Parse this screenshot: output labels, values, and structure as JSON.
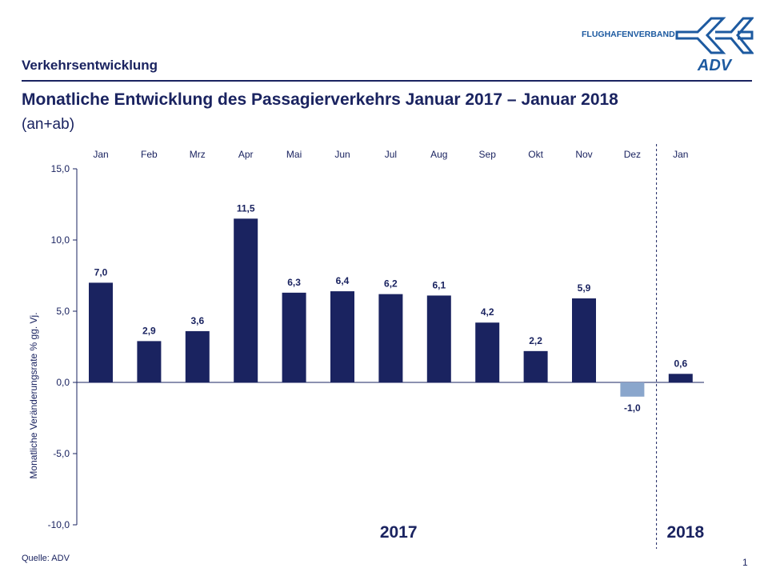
{
  "header": {
    "section": "Verkehrsentwicklung",
    "logo_text": "FLUGHAFENVERBAND",
    "logo_mark": "ADV"
  },
  "title": "Monatliche Entwicklung des Passagierverkehrs  Januar 2017 – Januar 2018",
  "subtitle": "(an+ab)",
  "footer": {
    "source": "Quelle: ADV",
    "page": "1"
  },
  "colors": {
    "bar": "#1a2360",
    "negative_bar": "#8aa6cc",
    "text": "#1a2360",
    "logo": "#1d5aa0"
  },
  "chart_data": {
    "type": "bar",
    "categories": [
      "Jan",
      "Feb",
      "Mrz",
      "Apr",
      "Mai",
      "Jun",
      "Jul",
      "Aug",
      "Sep",
      "Okt",
      "Nov",
      "Dez",
      "Jan"
    ],
    "values": [
      7.0,
      2.9,
      3.6,
      11.5,
      6.3,
      6.4,
      6.2,
      6.1,
      4.2,
      2.2,
      5.9,
      -1.0,
      0.6
    ],
    "data_labels": [
      "7,0",
      "2,9",
      "3,6",
      "11,5",
      "6,3",
      "6,4",
      "6,2",
      "6,1",
      "4,2",
      "2,2",
      "5,9",
      "-1,0",
      "0,6"
    ],
    "ylabel": "Monatliche Veränderungsrate % gg. Vj.",
    "ylim": [
      -10,
      15
    ],
    "yticks": [
      15,
      10,
      5,
      0,
      -5,
      -10
    ],
    "ytick_labels": [
      "15,0",
      "10,0",
      "5,0",
      "0,0",
      "-5,0",
      "-10,0"
    ],
    "year_groups": [
      "2017",
      "2018"
    ],
    "grid": false,
    "category_axis_position": "top"
  }
}
